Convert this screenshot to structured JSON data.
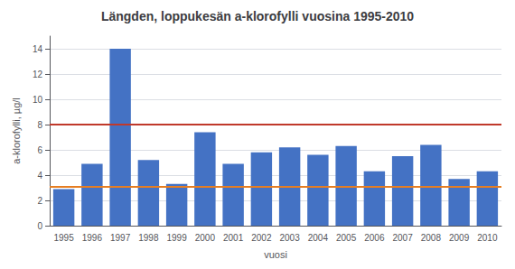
{
  "chart_data": {
    "type": "bar",
    "title": "Längden, loppukesän a-klorofylli vuosina 1995-2010",
    "xlabel": "vuosi",
    "ylabel": "a-klorofylli, µg/l",
    "categories": [
      "1995",
      "1996",
      "1997",
      "1998",
      "1999",
      "2000",
      "2001",
      "2002",
      "2003",
      "2004",
      "2005",
      "2006",
      "2007",
      "2008",
      "2009",
      "2010"
    ],
    "values": [
      2.9,
      4.9,
      14.0,
      5.2,
      3.3,
      7.4,
      4.9,
      5.8,
      6.2,
      5.6,
      6.3,
      4.3,
      5.5,
      6.4,
      3.7,
      4.3
    ],
    "color": "#4472C4",
    "lines": [
      {
        "y": 8.0,
        "color": "#C0392B"
      },
      {
        "y": 3.1,
        "color": "#E67E22"
      }
    ],
    "ylim": [
      0,
      15
    ],
    "yticks": [
      0,
      2,
      4,
      6,
      8,
      10,
      12,
      14
    ],
    "grid": true
  }
}
